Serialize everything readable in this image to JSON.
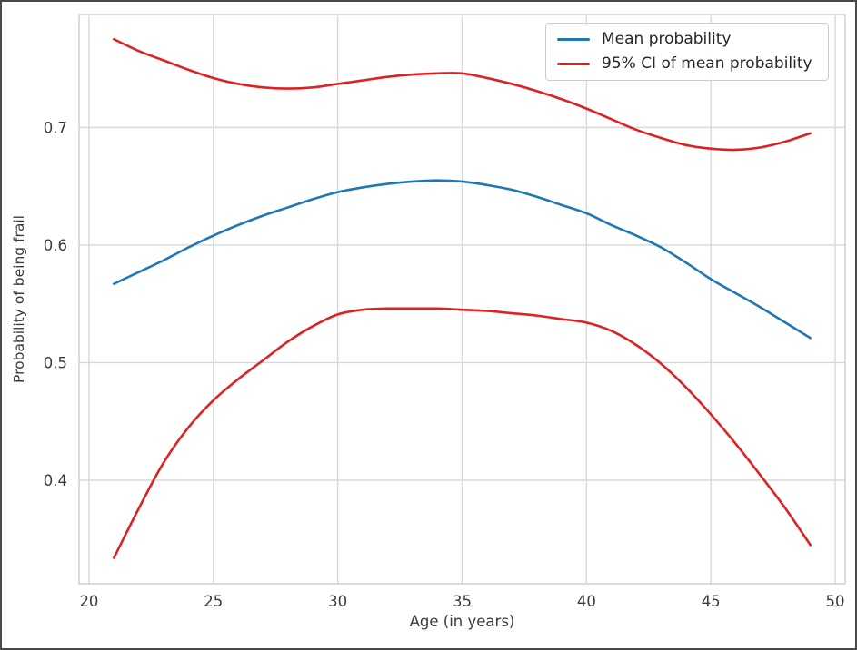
{
  "figure": {
    "background": "#ffffff",
    "border_color": "#4a4a4a"
  },
  "style": {
    "grid_color": "#d8d8d8",
    "spine_color": "#cccccc",
    "tick_label_color": "#3b3b3b",
    "axis_label_color": "#3b3b3b",
    "legend_text_color": "#262626",
    "line_width": 2.6
  },
  "chart_data": {
    "type": "line",
    "title": "",
    "xlabel": "Age (in years)",
    "ylabel": "Probability of being frail",
    "xlim": [
      19.6,
      50.4
    ],
    "ylim": [
      0.312,
      0.796
    ],
    "grid": true,
    "xticks": [
      20,
      25,
      30,
      35,
      40,
      45,
      50
    ],
    "xtick_labels": [
      "20",
      "25",
      "30",
      "35",
      "40",
      "45",
      "50"
    ],
    "yticks": [
      0.4,
      0.5,
      0.6,
      0.7
    ],
    "ytick_labels": [
      "0.4",
      "0.5",
      "0.6",
      "0.7"
    ],
    "x": [
      21,
      22,
      23,
      24,
      25,
      26,
      27,
      28,
      29,
      30,
      31,
      32,
      33,
      34,
      35,
      36,
      37,
      38,
      39,
      40,
      41,
      42,
      43,
      44,
      45,
      46,
      47,
      48,
      49
    ],
    "series": [
      {
        "name": "Mean probability",
        "role": "mean",
        "color": "#1f77b4",
        "values": [
          0.567,
          0.577,
          0.587,
          0.598,
          0.608,
          0.617,
          0.625,
          0.632,
          0.639,
          0.645,
          0.649,
          0.652,
          0.654,
          0.655,
          0.654,
          0.651,
          0.647,
          0.641,
          0.634,
          0.627,
          0.617,
          0.608,
          0.598,
          0.585,
          0.571,
          0.559,
          0.547,
          0.534,
          0.521
        ]
      },
      {
        "name": "95% CI of mean probability",
        "role": "ci-upper",
        "color": "#dd2222",
        "values": [
          0.775,
          0.765,
          0.757,
          0.749,
          0.742,
          0.737,
          0.734,
          0.733,
          0.734,
          0.737,
          0.74,
          0.743,
          0.745,
          0.746,
          0.746,
          0.742,
          0.737,
          0.731,
          0.724,
          0.716,
          0.707,
          0.698,
          0.691,
          0.685,
          0.682,
          0.681,
          0.683,
          0.688,
          0.695
        ]
      },
      {
        "name": "95% CI of mean probability",
        "role": "ci-lower",
        "color": "#dd2222",
        "values": [
          0.334,
          0.376,
          0.415,
          0.445,
          0.468,
          0.486,
          0.502,
          0.518,
          0.531,
          0.541,
          0.545,
          0.546,
          0.546,
          0.546,
          0.545,
          0.544,
          0.542,
          0.54,
          0.537,
          0.534,
          0.527,
          0.515,
          0.499,
          0.479,
          0.456,
          0.431,
          0.404,
          0.376,
          0.345
        ]
      }
    ],
    "legend": {
      "position": "upper-right",
      "entries": [
        {
          "label": "Mean probability",
          "color": "#1f77b4"
        },
        {
          "label": "95% CI of mean probability",
          "color": "#dd2222"
        }
      ]
    }
  }
}
